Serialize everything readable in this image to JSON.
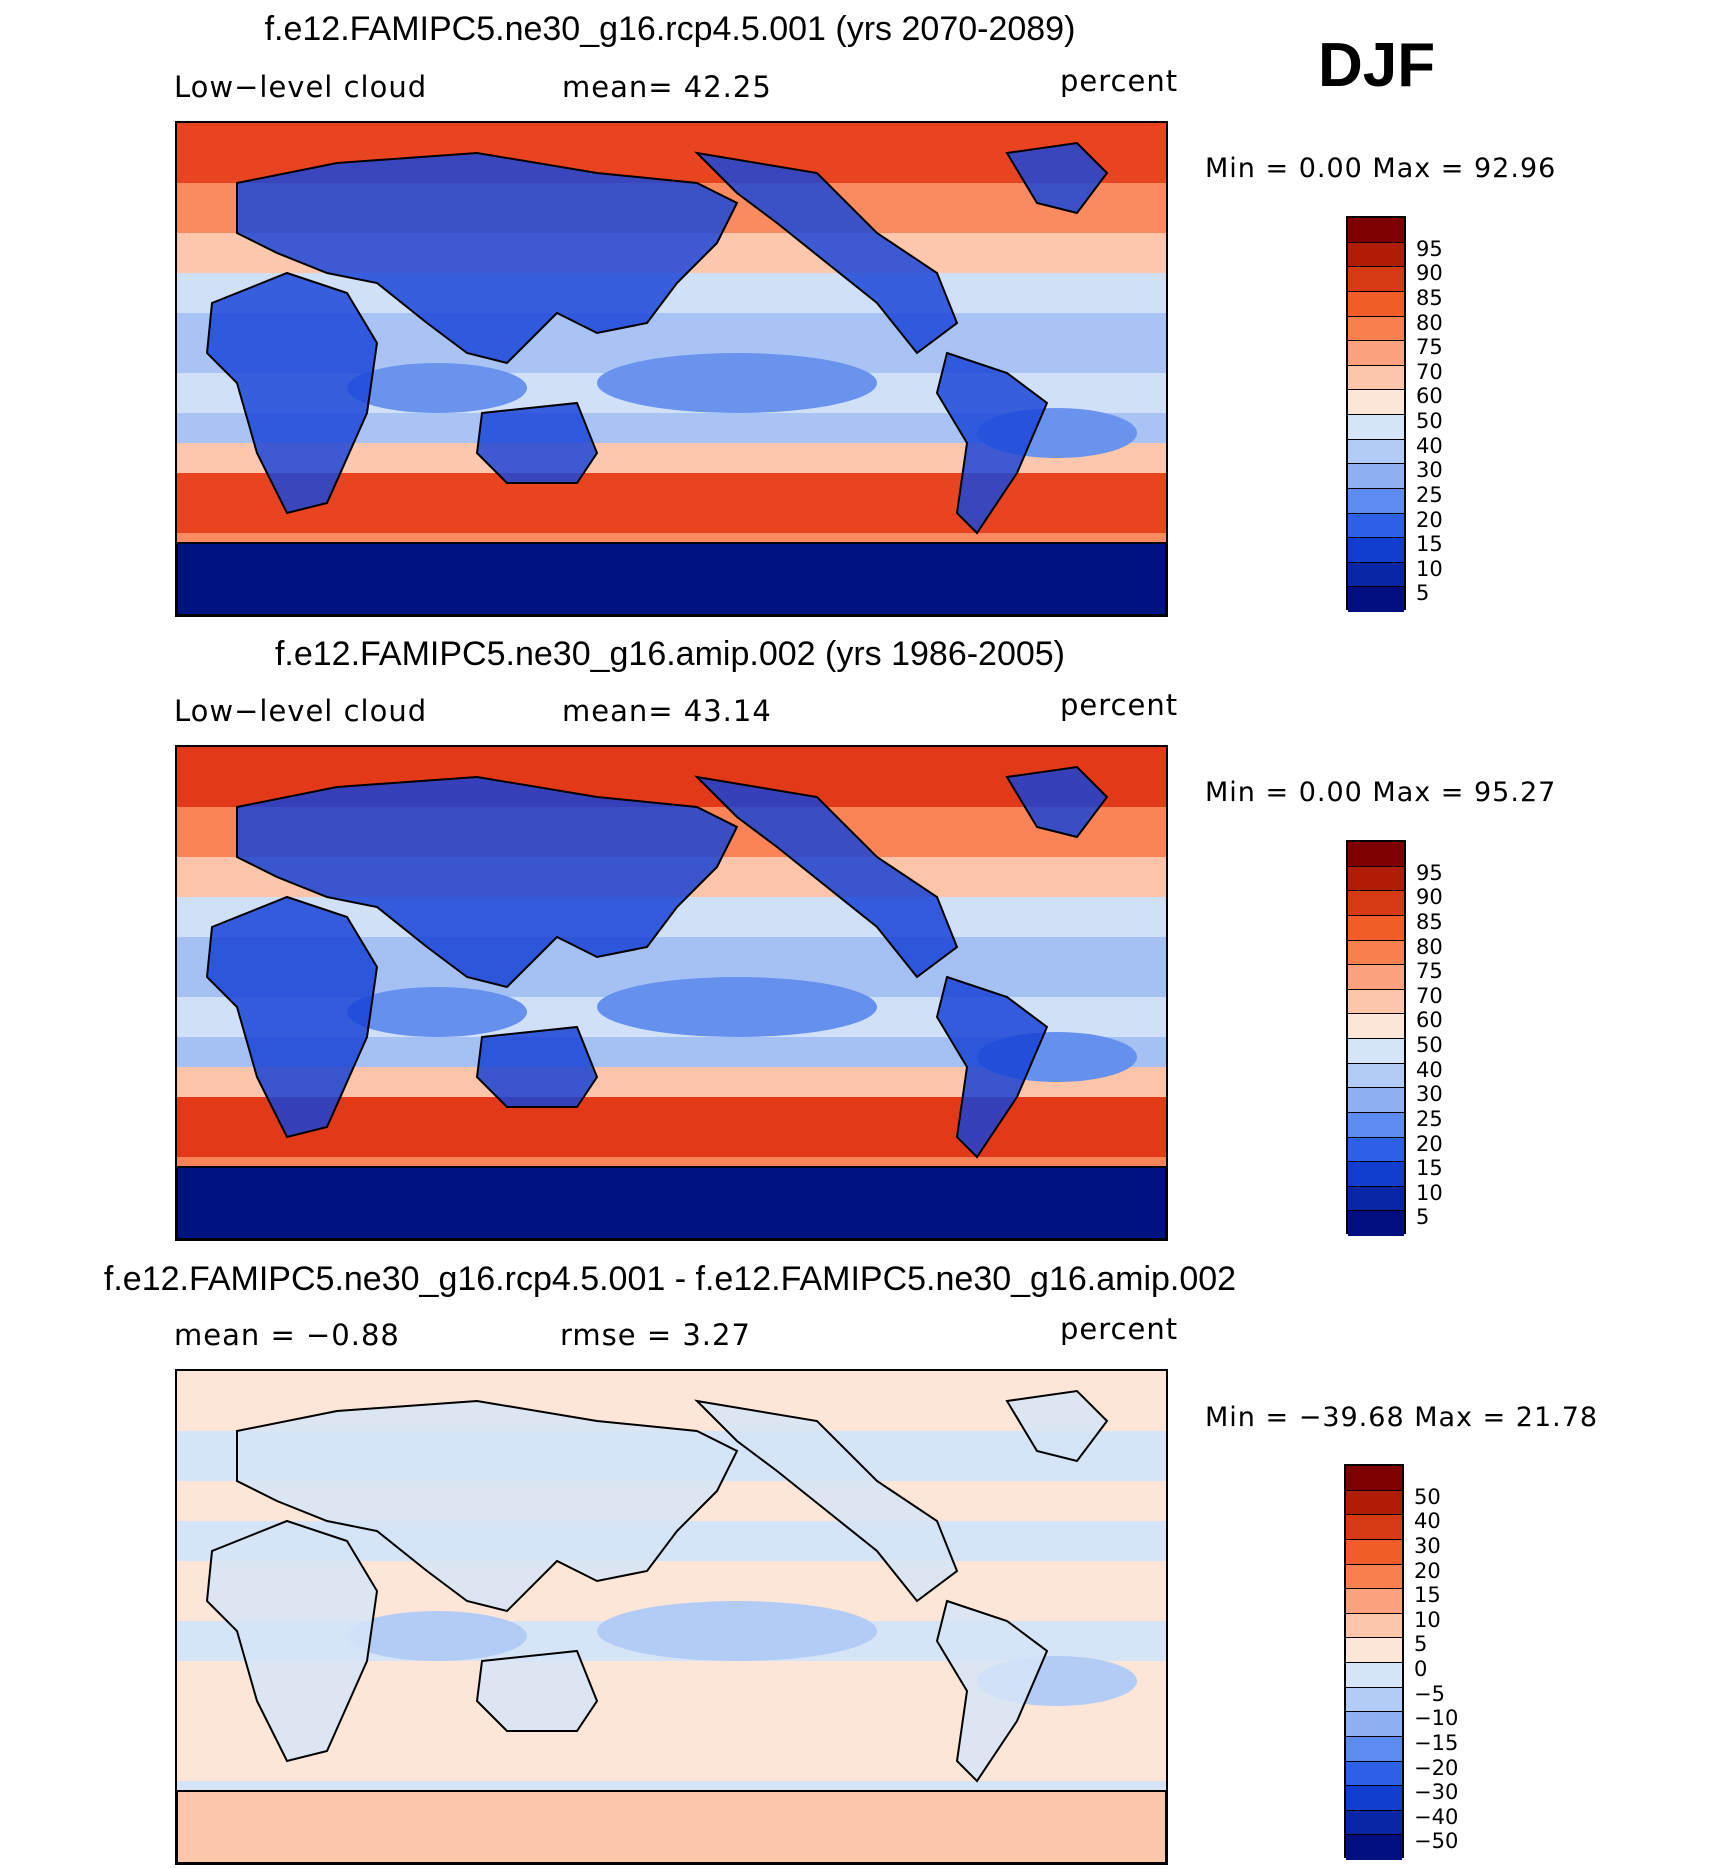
{
  "season": "DJF",
  "panels": [
    {
      "id": "future",
      "title": "f.e12.FAMIPC5.ne30_g16.rcp4.5.001 (yrs 2070-2089)",
      "left_label": "Low−level cloud",
      "center_label": "mean=   42.25",
      "unit": "percent",
      "minmax": "Min =     0.00 Max =   92.96",
      "colorbar": {
        "labels": [
          "95",
          "90",
          "85",
          "80",
          "75",
          "70",
          "60",
          "50",
          "40",
          "30",
          "25",
          "20",
          "15",
          "10",
          "5"
        ],
        "colors": [
          "#7f0000",
          "#b01d06",
          "#d63a12",
          "#f25d27",
          "#fa7f4e",
          "#fca27e",
          "#fcc6ab",
          "#fde6d8",
          "#d6e4f7",
          "#b3ccf5",
          "#8fb1f2",
          "#5d8cf0",
          "#2e60e8",
          "#123ecf",
          "#0826a6",
          "#000e80"
        ]
      },
      "map_colors": {
        "polar": "#e94420",
        "subpolar": "#fa8a60",
        "midlat": "#fcc7ad",
        "subtropic": "#cfe0f7",
        "tropic": "#a9c4f4",
        "stratocu": "#6a93ee",
        "land_dry": "#1b47d8",
        "deep": "#00127f"
      }
    },
    {
      "id": "control",
      "title": "f.e12.FAMIPC5.ne30_g16.amip.002 (yrs 1986-2005)",
      "left_label": "Low−level cloud",
      "center_label": "mean=   43.14",
      "unit": "percent",
      "minmax": "Min =     0.00 Max =   95.27",
      "colorbar": {
        "labels": [
          "95",
          "90",
          "85",
          "80",
          "75",
          "70",
          "60",
          "50",
          "40",
          "30",
          "25",
          "20",
          "15",
          "10",
          "5"
        ],
        "colors": [
          "#7f0000",
          "#b01d06",
          "#d63a12",
          "#f25d27",
          "#fa7f4e",
          "#fca27e",
          "#fcc6ab",
          "#fde6d8",
          "#d6e4f7",
          "#b3ccf5",
          "#8fb1f2",
          "#5d8cf0",
          "#2e60e8",
          "#123ecf",
          "#0826a6",
          "#000e80"
        ]
      },
      "map_colors": {
        "polar": "#e23a18",
        "subpolar": "#fa8458",
        "midlat": "#fcc4a8",
        "subtropic": "#cfe0f7",
        "tropic": "#a5c1f4",
        "stratocu": "#6690ee",
        "land_dry": "#1843d6",
        "deep": "#00127f"
      }
    },
    {
      "id": "difference",
      "title": "f.e12.FAMIPC5.ne30_g16.rcp4.5.001 - f.e12.FAMIPC5.ne30_g16.amip.002",
      "left_label": "mean =   −0.88",
      "center_label": "rmse =     3.27",
      "unit": "percent",
      "minmax": "Min = −39.68 Max =   21.78",
      "colorbar": {
        "labels": [
          "50",
          "40",
          "30",
          "20",
          "15",
          "10",
          "5",
          "0",
          "−5",
          "−10",
          "−15",
          "−20",
          "−30",
          "−40",
          "−50"
        ],
        "colors": [
          "#7f0000",
          "#b01d06",
          "#d63a12",
          "#f25d27",
          "#fa7f4e",
          "#fca27e",
          "#fcc6ab",
          "#fde6d8",
          "#d6e4f7",
          "#b3ccf5",
          "#8fb1f2",
          "#5d8cf0",
          "#2e60e8",
          "#123ecf",
          "#0826a6",
          "#000e80"
        ]
      },
      "map_colors": {
        "polar": "#fde6d8",
        "subpolar": "#d6e4f7",
        "midlat": "#fde6d8",
        "subtropic": "#d6e4f7",
        "tropic": "#fde6d8",
        "stratocu": "#b3ccf5",
        "land_dry": "#d6e4f7",
        "deep": "#fcc6ab"
      }
    }
  ]
}
